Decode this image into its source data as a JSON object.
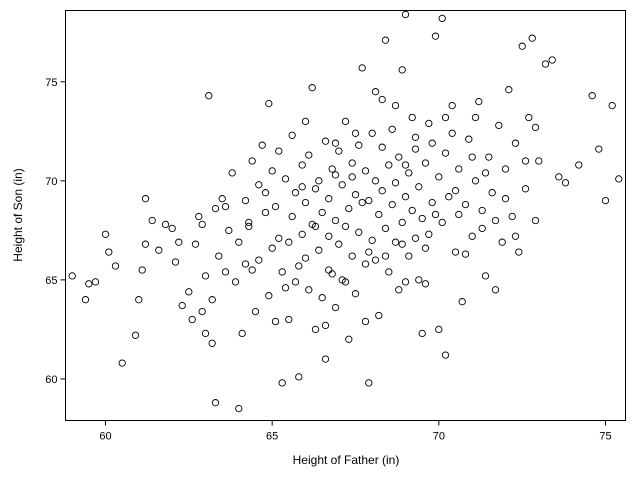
{
  "chart_data": {
    "type": "scatter",
    "title": "",
    "xlabel": "Height of Father (in)",
    "ylabel": "Height of Son (in)",
    "xlim": [
      58.8,
      75.6
    ],
    "ylim": [
      57.9,
      78.6
    ],
    "xticks": [
      "60",
      "65",
      "70",
      "75"
    ],
    "yticks": [
      "60",
      "65",
      "70",
      "75"
    ],
    "grid": false,
    "legend": "none",
    "marker": "open-circle",
    "colors": {
      "marker": "#000000",
      "frame": "#000000",
      "background": "#ffffff"
    },
    "series": [
      {
        "points": [
          [
            59.0,
            65.2
          ],
          [
            59.5,
            64.8
          ],
          [
            59.7,
            64.9
          ],
          [
            59.4,
            64.0
          ],
          [
            60.0,
            67.3
          ],
          [
            60.3,
            65.7
          ],
          [
            60.5,
            60.8
          ],
          [
            60.9,
            62.2
          ],
          [
            61.1,
            65.5
          ],
          [
            61.2,
            66.8
          ],
          [
            61.4,
            68.0
          ],
          [
            61.2,
            69.1
          ],
          [
            61.6,
            66.5
          ],
          [
            61.8,
            67.8
          ],
          [
            62.0,
            67.6
          ],
          [
            62.1,
            65.9
          ],
          [
            62.3,
            63.7
          ],
          [
            62.5,
            64.4
          ],
          [
            62.6,
            63.0
          ],
          [
            62.7,
            66.8
          ],
          [
            62.8,
            68.2
          ],
          [
            62.9,
            63.4
          ],
          [
            62.9,
            67.8
          ],
          [
            63.0,
            65.2
          ],
          [
            63.2,
            61.8
          ],
          [
            63.2,
            64.0
          ],
          [
            63.3,
            68.6
          ],
          [
            63.3,
            58.8
          ],
          [
            63.1,
            74.3
          ],
          [
            63.4,
            66.2
          ],
          [
            63.5,
            69.1
          ],
          [
            63.6,
            65.4
          ],
          [
            63.7,
            67.5
          ],
          [
            63.8,
            70.4
          ],
          [
            63.9,
            64.9
          ],
          [
            64.0,
            66.9
          ],
          [
            64.0,
            58.5
          ],
          [
            64.1,
            62.3
          ],
          [
            64.2,
            69.0
          ],
          [
            64.3,
            67.7
          ],
          [
            64.4,
            71.0
          ],
          [
            64.4,
            65.5
          ],
          [
            64.5,
            63.4
          ],
          [
            64.6,
            66.0
          ],
          [
            64.6,
            69.8
          ],
          [
            64.7,
            71.8
          ],
          [
            64.8,
            68.4
          ],
          [
            64.9,
            64.2
          ],
          [
            64.9,
            73.9
          ],
          [
            65.0,
            66.6
          ],
          [
            65.0,
            70.5
          ],
          [
            65.1,
            62.9
          ],
          [
            65.1,
            68.7
          ],
          [
            65.2,
            67.1
          ],
          [
            65.3,
            59.8
          ],
          [
            65.3,
            65.4
          ],
          [
            65.4,
            70.1
          ],
          [
            65.5,
            66.9
          ],
          [
            65.5,
            63.0
          ],
          [
            65.6,
            68.2
          ],
          [
            65.6,
            72.3
          ],
          [
            65.7,
            69.4
          ],
          [
            65.8,
            65.7
          ],
          [
            65.8,
            60.1
          ],
          [
            65.9,
            67.3
          ],
          [
            65.9,
            70.8
          ],
          [
            66.0,
            66.1
          ],
          [
            66.0,
            68.9
          ],
          [
            66.1,
            64.5
          ],
          [
            66.1,
            71.3
          ],
          [
            66.2,
            67.8
          ],
          [
            66.2,
            74.7
          ],
          [
            66.3,
            62.5
          ],
          [
            66.3,
            69.6
          ],
          [
            66.4,
            66.5
          ],
          [
            66.4,
            70.0
          ],
          [
            66.5,
            64.1
          ],
          [
            66.5,
            68.4
          ],
          [
            66.6,
            72.0
          ],
          [
            66.6,
            61.0
          ],
          [
            66.7,
            67.2
          ],
          [
            66.7,
            69.1
          ],
          [
            66.8,
            65.3
          ],
          [
            66.8,
            70.6
          ],
          [
            66.9,
            68.0
          ],
          [
            66.9,
            63.6
          ],
          [
            67.0,
            66.8
          ],
          [
            67.0,
            71.5
          ],
          [
            67.1,
            69.8
          ],
          [
            67.1,
            65.0
          ],
          [
            67.2,
            67.7
          ],
          [
            67.2,
            73.0
          ],
          [
            67.3,
            68.6
          ],
          [
            67.3,
            62.0
          ],
          [
            67.4,
            70.2
          ],
          [
            67.4,
            66.2
          ],
          [
            67.5,
            69.3
          ],
          [
            67.5,
            64.3
          ],
          [
            67.6,
            71.8
          ],
          [
            67.6,
            67.4
          ],
          [
            67.7,
            75.7
          ],
          [
            67.7,
            68.9
          ],
          [
            67.8,
            65.8
          ],
          [
            67.8,
            70.5
          ],
          [
            67.9,
            59.8
          ],
          [
            67.9,
            69.0
          ],
          [
            68.0,
            67.0
          ],
          [
            68.0,
            72.4
          ],
          [
            68.1,
            66.0
          ],
          [
            68.1,
            70.0
          ],
          [
            68.2,
            68.3
          ],
          [
            68.2,
            63.2
          ],
          [
            68.3,
            74.1
          ],
          [
            68.3,
            69.5
          ],
          [
            68.4,
            77.1
          ],
          [
            68.4,
            67.6
          ],
          [
            68.5,
            70.8
          ],
          [
            68.5,
            65.4
          ],
          [
            68.6,
            68.8
          ],
          [
            68.6,
            72.6
          ],
          [
            68.7,
            66.9
          ],
          [
            68.7,
            69.9
          ],
          [
            68.8,
            64.5
          ],
          [
            68.8,
            71.2
          ],
          [
            68.9,
            67.9
          ],
          [
            68.9,
            75.6
          ],
          [
            69.0,
            78.4
          ],
          [
            69.0,
            69.2
          ],
          [
            69.1,
            66.2
          ],
          [
            69.1,
            70.4
          ],
          [
            69.2,
            68.5
          ],
          [
            69.2,
            73.2
          ],
          [
            69.3,
            67.1
          ],
          [
            69.3,
            71.6
          ],
          [
            69.4,
            65.0
          ],
          [
            69.4,
            69.7
          ],
          [
            69.5,
            68.1
          ],
          [
            69.5,
            62.3
          ],
          [
            69.6,
            70.9
          ],
          [
            69.6,
            66.6
          ],
          [
            69.7,
            72.9
          ],
          [
            69.8,
            68.9
          ],
          [
            69.9,
            77.3
          ],
          [
            70.0,
            70.2
          ],
          [
            70.0,
            62.5
          ],
          [
            70.1,
            67.9
          ],
          [
            70.1,
            78.2
          ],
          [
            70.2,
            71.4
          ],
          [
            70.2,
            61.2
          ],
          [
            70.3,
            69.2
          ],
          [
            70.4,
            73.8
          ],
          [
            70.5,
            66.4
          ],
          [
            70.6,
            70.6
          ],
          [
            70.7,
            63.9
          ],
          [
            70.8,
            68.8
          ],
          [
            70.9,
            72.1
          ],
          [
            71.0,
            67.2
          ],
          [
            71.1,
            70.0
          ],
          [
            71.2,
            74.0
          ],
          [
            71.3,
            68.5
          ],
          [
            71.4,
            65.2
          ],
          [
            71.5,
            71.2
          ],
          [
            71.6,
            69.4
          ],
          [
            71.7,
            64.5
          ],
          [
            71.8,
            72.8
          ],
          [
            71.9,
            66.9
          ],
          [
            72.0,
            70.6
          ],
          [
            72.1,
            74.6
          ],
          [
            72.2,
            68.2
          ],
          [
            72.3,
            71.9
          ],
          [
            72.4,
            66.4
          ],
          [
            72.5,
            76.8
          ],
          [
            72.6,
            69.6
          ],
          [
            72.7,
            73.2
          ],
          [
            72.8,
            77.2
          ],
          [
            72.9,
            68.0
          ],
          [
            73.0,
            71.0
          ],
          [
            73.2,
            75.9
          ],
          [
            73.4,
            76.1
          ],
          [
            73.6,
            70.2
          ],
          [
            73.8,
            69.9
          ],
          [
            74.2,
            70.8
          ],
          [
            74.6,
            74.3
          ],
          [
            74.8,
            71.6
          ],
          [
            75.0,
            69.0
          ],
          [
            75.2,
            73.8
          ],
          [
            75.4,
            70.1
          ],
          [
            60.1,
            66.4
          ],
          [
            61.0,
            64.0
          ],
          [
            62.2,
            66.9
          ],
          [
            63.0,
            62.3
          ],
          [
            63.6,
            68.7
          ],
          [
            64.2,
            65.8
          ],
          [
            64.8,
            69.4
          ],
          [
            65.2,
            71.5
          ],
          [
            65.7,
            64.9
          ],
          [
            66.0,
            73.0
          ],
          [
            66.3,
            67.7
          ],
          [
            66.6,
            62.7
          ],
          [
            66.9,
            70.3
          ],
          [
            67.2,
            64.9
          ],
          [
            67.5,
            72.4
          ],
          [
            67.8,
            62.9
          ],
          [
            68.1,
            74.5
          ],
          [
            68.4,
            66.2
          ],
          [
            68.7,
            73.8
          ],
          [
            69.0,
            64.9
          ],
          [
            69.3,
            72.2
          ],
          [
            69.6,
            64.8
          ],
          [
            69.9,
            68.3
          ],
          [
            70.2,
            73.2
          ],
          [
            70.5,
            69.5
          ],
          [
            70.8,
            66.3
          ],
          [
            71.1,
            73.2
          ],
          [
            71.4,
            70.4
          ],
          [
            71.7,
            68.0
          ],
          [
            72.0,
            69.1
          ],
          [
            72.3,
            67.2
          ],
          [
            72.6,
            71.0
          ],
          [
            72.9,
            72.7
          ],
          [
            64.3,
            67.9
          ],
          [
            65.4,
            64.6
          ],
          [
            66.7,
            65.5
          ],
          [
            67.9,
            66.4
          ],
          [
            68.9,
            66.8
          ],
          [
            69.7,
            67.3
          ],
          [
            70.6,
            68.3
          ],
          [
            71.3,
            67.6
          ],
          [
            65.9,
            69.7
          ],
          [
            66.9,
            71.9
          ],
          [
            67.4,
            70.9
          ],
          [
            68.3,
            71.7
          ],
          [
            69.0,
            70.8
          ],
          [
            69.8,
            71.9
          ],
          [
            70.4,
            72.4
          ],
          [
            71.0,
            71.2
          ]
        ]
      }
    ]
  }
}
